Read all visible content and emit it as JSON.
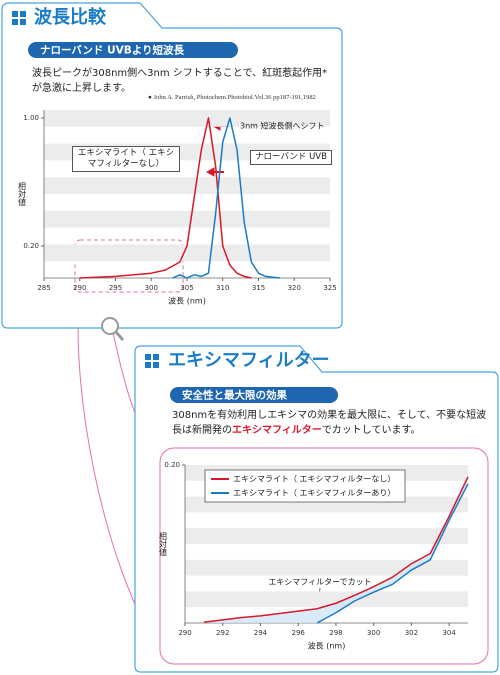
{
  "header1": {
    "title": "波長比較",
    "subtitle": "ナローバンド UVBより短波長",
    "text": "波長ピークが308nm側へ3nm シフトすることで、紅斑惹起作用*が急激に上昇します。",
    "citation": "● John A. Parrish, Photochem.Photobiol.Vol.36 pp187-191,1982"
  },
  "header2": {
    "title": "エキシマフィルター",
    "subtitle": "安全性と最大限の効果",
    "text_before": "308nmを有効利用しエキシマの効果を最大限に、そして、不要な短波長は新開発の",
    "text_highlight": "エキシマフィルター",
    "text_after": "でカットしています。"
  },
  "chart_data": [
    {
      "type": "line",
      "xlabel": "波長 (nm)",
      "ylabel": "相対値",
      "annotation": "3nm 短波長側へシフト",
      "xlim": [
        285,
        325
      ],
      "xticks": [
        285,
        290,
        295,
        300,
        305,
        310,
        315,
        320,
        325
      ],
      "ylim": [
        0,
        1.05
      ],
      "yticks": [
        {
          "value": 0.2,
          "label": "0.20"
        },
        {
          "value": 1,
          "label": "1.00"
        }
      ],
      "series": [
        {
          "name": "エキシマライト（ エキシマフィルターなし）",
          "color": "#d7182a",
          "x": [
            290,
            295,
            300,
            302,
            304,
            305,
            306,
            307,
            308,
            309,
            310,
            311,
            312,
            313,
            314
          ],
          "values": [
            0,
            0.01,
            0.03,
            0.05,
            0.1,
            0.2,
            0.5,
            0.8,
            1.0,
            0.7,
            0.2,
            0.08,
            0.03,
            0.01,
            0
          ]
        },
        {
          "name": "ナローバンド UVB",
          "color": "#1a7cc7",
          "x": [
            303,
            304,
            305,
            306,
            307,
            308,
            309,
            310,
            311,
            312,
            313,
            314,
            315,
            316,
            318
          ],
          "values": [
            0,
            0.02,
            0,
            0.02,
            0.01,
            0.03,
            0.4,
            0.85,
            1.0,
            0.8,
            0.35,
            0.1,
            0.03,
            0.01,
            0
          ]
        }
      ]
    },
    {
      "type": "line",
      "xlabel": "波長 (nm)",
      "ylabel": "相対値",
      "annotation": "エキシマフィルターでカット",
      "legend": true,
      "xlim": [
        290,
        305
      ],
      "xticks": [
        290,
        292,
        294,
        296,
        298,
        300,
        302,
        304
      ],
      "ylim": [
        0,
        0.2
      ],
      "yticks": [
        {
          "value": 0.2,
          "label": "0.20"
        }
      ],
      "x": [
        291,
        292,
        293,
        294,
        295,
        296,
        297,
        298,
        299,
        300,
        301,
        302,
        303,
        304,
        305
      ],
      "series": [
        {
          "name": "エキシマライト（ エキシマフィルターなし）",
          "color": "#d7182a",
          "values": [
            0.001,
            0.004,
            0.007,
            0.009,
            0.012,
            0.015,
            0.018,
            0.025,
            0.035,
            0.046,
            0.058,
            0.075,
            0.088,
            0.135,
            0.185
          ]
        },
        {
          "name": "エキシマライト（ エキシマフィルターあり）",
          "color": "#1a7cc7",
          "values": [
            null,
            null,
            null,
            null,
            null,
            null,
            0,
            0.013,
            0.028,
            0.039,
            0.049,
            0.067,
            0.08,
            0.13,
            0.176
          ]
        }
      ]
    }
  ]
}
